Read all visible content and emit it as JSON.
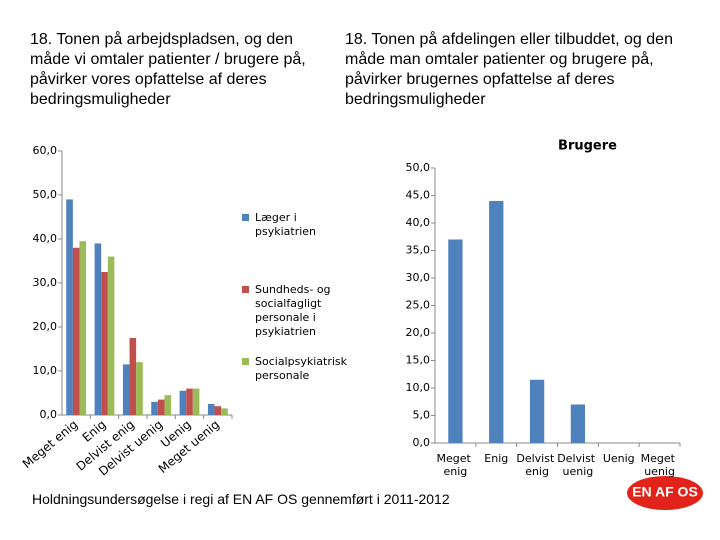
{
  "headings": [
    "18. Tonen på arbejdspladsen, og den måde vi omtaler patienter / brugere på, påvirker vores opfattelse af deres bedringsmuligheder",
    "18. Tonen på afdelingen eller tilbuddet, og den måde man omtaler patienter og brugere på, påvirker brugernes opfattelse af deres bedringsmuligheder"
  ],
  "footer": "Holdningsundersøgelse i regi af EN AF OS gennemført i 2011-2012",
  "logo": "EN AF OS",
  "chart_data": [
    {
      "type": "bar",
      "categories": [
        "Meget enig",
        "Enig",
        "Delvist enig",
        "Delvist uenig",
        "Uenig",
        "Meget uenig"
      ],
      "series": [
        {
          "name": "Læger i psykiatrien",
          "color": "#4f81bd",
          "values": [
            49,
            39,
            11.5,
            3,
            5.5,
            2.5
          ]
        },
        {
          "name": "Sundheds- og socialfagligt personale i psykiatrien",
          "color": "#c0504d",
          "values": [
            38,
            32.5,
            17.5,
            3.5,
            6,
            2
          ]
        },
        {
          "name": "Socialpsykiatrisk personale",
          "color": "#9bbb59",
          "values": [
            39.5,
            36,
            12,
            4.5,
            6,
            1.5
          ]
        }
      ],
      "ylim": [
        0,
        60
      ],
      "yticks": [
        {
          "value": 0,
          "label": "0,0"
        },
        {
          "value": 10,
          "label": "10,0"
        },
        {
          "value": 20,
          "label": "20,0"
        },
        {
          "value": 30,
          "label": "30,0"
        },
        {
          "value": 40,
          "label": "40,0"
        },
        {
          "value": 50,
          "label": "50,0"
        },
        {
          "value": 60,
          "label": "60,0"
        }
      ],
      "grid": false,
      "legend": "right"
    },
    {
      "type": "bar",
      "title": "Brugere",
      "categories": [
        "Meget enig",
        "Enig",
        "Delvist enig",
        "Delvist uenig",
        "Uenig",
        "Meget uenig"
      ],
      "values": [
        37,
        44,
        11.5,
        7,
        0,
        0
      ],
      "color": "#4f81bd",
      "ylim": [
        0,
        50
      ],
      "yticks": [
        {
          "value": 0,
          "label": "0,0"
        },
        {
          "value": 5,
          "label": "5,0"
        },
        {
          "value": 10,
          "label": "10,0"
        },
        {
          "value": 15,
          "label": "15,0"
        },
        {
          "value": 20,
          "label": "20,0"
        },
        {
          "value": 25,
          "label": "25,0"
        },
        {
          "value": 30,
          "label": "30,0"
        },
        {
          "value": 35,
          "label": "35,0"
        },
        {
          "value": 40,
          "label": "40,0"
        },
        {
          "value": 45,
          "label": "45,0"
        },
        {
          "value": 50,
          "label": "50,0"
        }
      ],
      "grid": false
    }
  ]
}
